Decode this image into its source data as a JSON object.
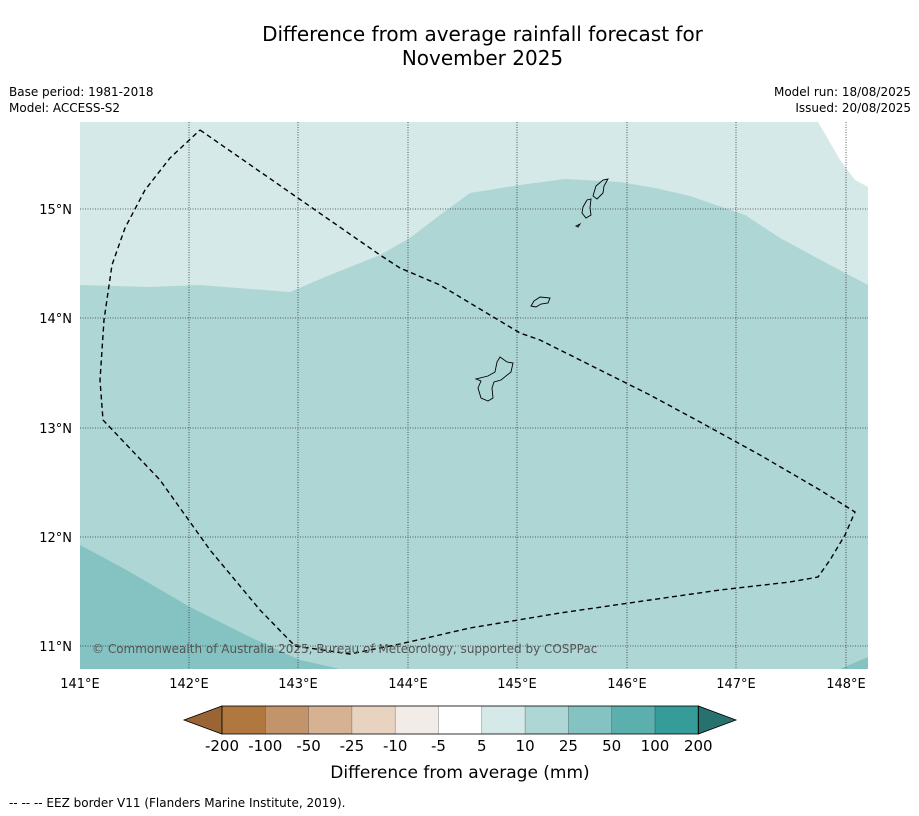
{
  "title": {
    "line1": "Difference from average rainfall forecast for",
    "line2": "November 2025"
  },
  "meta": {
    "base_period": "Base period: 1981-2018",
    "model": "Model: ACCESS-S2",
    "model_run": "Model run: 18/08/2025",
    "issued": "Issued: 20/08/2025"
  },
  "map": {
    "lat_labels": [
      "15°N",
      "14°N",
      "13°N",
      "12°N",
      "11°N"
    ],
    "lon_labels": [
      "141°E",
      "142°E",
      "143°E",
      "144°E",
      "145°E",
      "146°E",
      "147°E",
      "148°E"
    ],
    "copyright": "© Commonwealth of Australia 2025, Bureau of Meteorology, supported by COSPPac",
    "category_colors": {
      "5_to_10": "#d5e9e8",
      "10_to_25": "#add6d5",
      "25_to_50": "#85c3c2"
    }
  },
  "colorbar": {
    "ticks": [
      "-200",
      "-100",
      "-50",
      "-25",
      "-10",
      "-5",
      "5",
      "10",
      "25",
      "50",
      "100",
      "200"
    ],
    "label": "Difference from average (mm)",
    "colors": [
      "#9b6435",
      "#b0773e",
      "#c1946a",
      "#d6b293",
      "#e8d3c1",
      "#f2ece8",
      "#ffffff",
      "#d5e9e8",
      "#add6d5",
      "#85c3c2",
      "#5bb0ae",
      "#359c9a",
      "#27726f"
    ]
  },
  "footnote": "--  --  -- EEZ border V11 (Flanders Marine Institute, 2019)."
}
